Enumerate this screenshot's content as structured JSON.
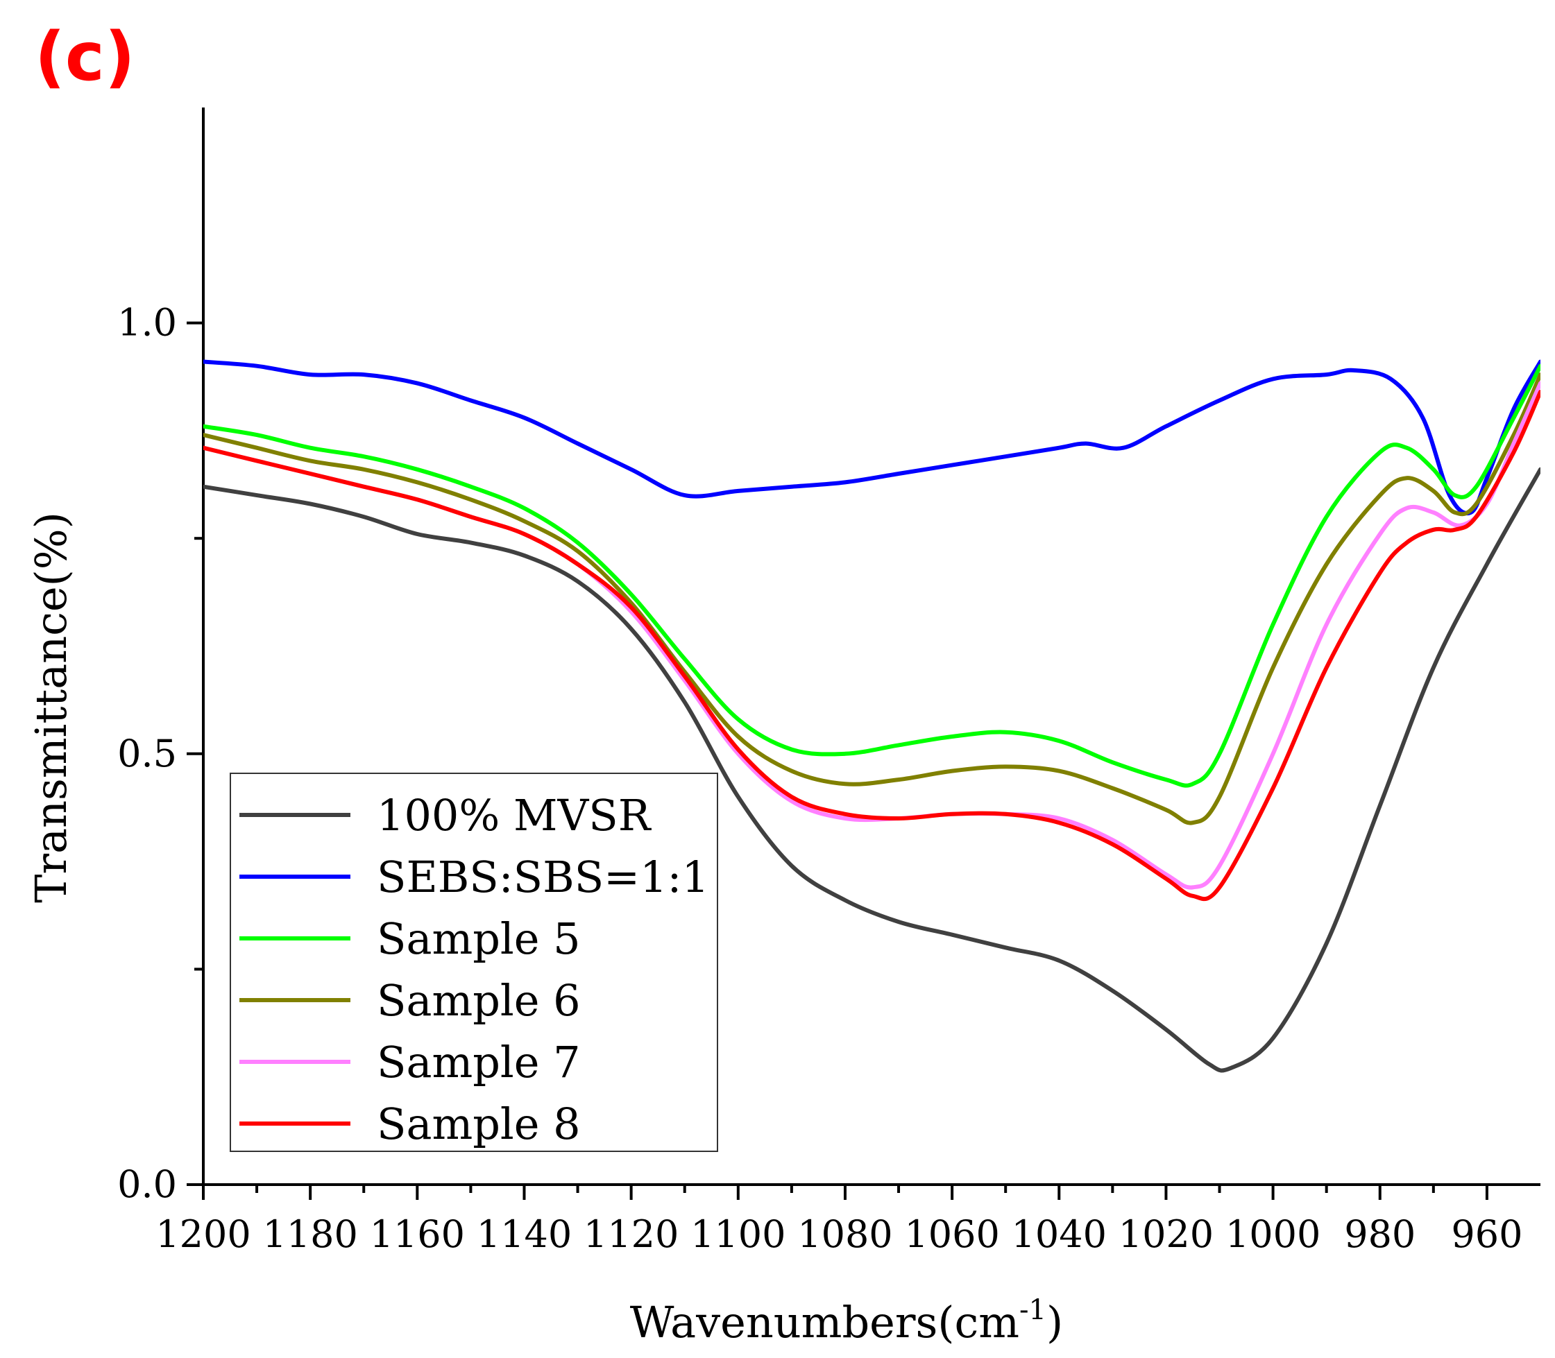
{
  "panel_label": "(c)",
  "chart_data": {
    "type": "line",
    "title": "",
    "xlabel": "Wavenumbers(cm",
    "xlabel_superscript": "-1",
    "xlabel_suffix": ")",
    "ylabel": "Transmittance(%)",
    "xlim": [
      1200,
      950
    ],
    "ylim": [
      0.0,
      1.25
    ],
    "x_major_ticks": [
      1200,
      1180,
      1160,
      1140,
      1120,
      1100,
      1080,
      1060,
      1040,
      1020,
      1000,
      980,
      960
    ],
    "x_tick_labels": [
      "1200",
      "1180",
      "1160",
      "1140",
      "1120",
      "1100",
      "1080",
      "1060",
      "1040",
      "1020",
      "1000",
      "980",
      "960"
    ],
    "y_major_ticks": [
      0.0,
      0.5,
      1.0
    ],
    "y_tick_labels": [
      "0.0",
      "0.5",
      "1.0"
    ],
    "y_minor_ticks": [
      0.25,
      0.75
    ],
    "legend_position": "bottom-left",
    "series": [
      {
        "name": "100% MVSR",
        "color": "#404040",
        "points": [
          [
            1200,
            0.81
          ],
          [
            1190,
            0.8
          ],
          [
            1180,
            0.79
          ],
          [
            1170,
            0.775
          ],
          [
            1160,
            0.755
          ],
          [
            1150,
            0.745
          ],
          [
            1140,
            0.73
          ],
          [
            1130,
            0.7
          ],
          [
            1120,
            0.645
          ],
          [
            1110,
            0.56
          ],
          [
            1100,
            0.45
          ],
          [
            1090,
            0.37
          ],
          [
            1080,
            0.33
          ],
          [
            1070,
            0.305
          ],
          [
            1060,
            0.29
          ],
          [
            1050,
            0.275
          ],
          [
            1040,
            0.26
          ],
          [
            1030,
            0.225
          ],
          [
            1020,
            0.18
          ],
          [
            1012,
            0.14
          ],
          [
            1008,
            0.135
          ],
          [
            1000,
            0.17
          ],
          [
            990,
            0.28
          ],
          [
            980,
            0.44
          ],
          [
            970,
            0.6
          ],
          [
            960,
            0.72
          ],
          [
            950,
            0.83
          ]
        ]
      },
      {
        "name": "SEBS:SBS=1:1",
        "color": "#0000ff",
        "points": [
          [
            1200,
            0.955
          ],
          [
            1190,
            0.95
          ],
          [
            1180,
            0.94
          ],
          [
            1170,
            0.94
          ],
          [
            1160,
            0.93
          ],
          [
            1150,
            0.91
          ],
          [
            1140,
            0.89
          ],
          [
            1130,
            0.86
          ],
          [
            1120,
            0.83
          ],
          [
            1110,
            0.8
          ],
          [
            1100,
            0.805
          ],
          [
            1090,
            0.81
          ],
          [
            1080,
            0.815
          ],
          [
            1070,
            0.825
          ],
          [
            1060,
            0.835
          ],
          [
            1050,
            0.845
          ],
          [
            1040,
            0.855
          ],
          [
            1035,
            0.86
          ],
          [
            1028,
            0.855
          ],
          [
            1020,
            0.88
          ],
          [
            1010,
            0.91
          ],
          [
            1000,
            0.935
          ],
          [
            990,
            0.94
          ],
          [
            985,
            0.945
          ],
          [
            978,
            0.935
          ],
          [
            972,
            0.89
          ],
          [
            967,
            0.8
          ],
          [
            963,
            0.78
          ],
          [
            960,
            0.82
          ],
          [
            955,
            0.9
          ],
          [
            950,
            0.955
          ]
        ]
      },
      {
        "name": "Sample 5",
        "color": "#00ff00",
        "points": [
          [
            1200,
            0.88
          ],
          [
            1190,
            0.87
          ],
          [
            1180,
            0.855
          ],
          [
            1170,
            0.845
          ],
          [
            1160,
            0.83
          ],
          [
            1150,
            0.81
          ],
          [
            1140,
            0.785
          ],
          [
            1130,
            0.745
          ],
          [
            1120,
            0.685
          ],
          [
            1110,
            0.61
          ],
          [
            1100,
            0.54
          ],
          [
            1090,
            0.505
          ],
          [
            1080,
            0.5
          ],
          [
            1070,
            0.51
          ],
          [
            1060,
            0.52
          ],
          [
            1050,
            0.525
          ],
          [
            1040,
            0.515
          ],
          [
            1030,
            0.49
          ],
          [
            1020,
            0.47
          ],
          [
            1015,
            0.465
          ],
          [
            1010,
            0.5
          ],
          [
            1000,
            0.65
          ],
          [
            990,
            0.775
          ],
          [
            980,
            0.85
          ],
          [
            975,
            0.855
          ],
          [
            970,
            0.83
          ],
          [
            966,
            0.8
          ],
          [
            962,
            0.81
          ],
          [
            955,
            0.89
          ],
          [
            950,
            0.95
          ]
        ]
      },
      {
        "name": "Sample 6",
        "color": "#808000",
        "points": [
          [
            1200,
            0.87
          ],
          [
            1190,
            0.855
          ],
          [
            1180,
            0.84
          ],
          [
            1170,
            0.83
          ],
          [
            1160,
            0.815
          ],
          [
            1150,
            0.795
          ],
          [
            1140,
            0.77
          ],
          [
            1130,
            0.735
          ],
          [
            1120,
            0.675
          ],
          [
            1110,
            0.595
          ],
          [
            1100,
            0.52
          ],
          [
            1090,
            0.48
          ],
          [
            1080,
            0.465
          ],
          [
            1070,
            0.47
          ],
          [
            1060,
            0.48
          ],
          [
            1050,
            0.485
          ],
          [
            1040,
            0.48
          ],
          [
            1030,
            0.46
          ],
          [
            1020,
            0.435
          ],
          [
            1015,
            0.42
          ],
          [
            1010,
            0.45
          ],
          [
            1000,
            0.6
          ],
          [
            990,
            0.72
          ],
          [
            980,
            0.8
          ],
          [
            975,
            0.82
          ],
          [
            970,
            0.805
          ],
          [
            966,
            0.78
          ],
          [
            962,
            0.79
          ],
          [
            955,
            0.87
          ],
          [
            950,
            0.94
          ]
        ]
      },
      {
        "name": "Sample 7",
        "color": "#ff80ff",
        "points": [
          [
            1200,
            0.855
          ],
          [
            1190,
            0.84
          ],
          [
            1180,
            0.825
          ],
          [
            1170,
            0.81
          ],
          [
            1160,
            0.795
          ],
          [
            1150,
            0.775
          ],
          [
            1140,
            0.755
          ],
          [
            1130,
            0.72
          ],
          [
            1120,
            0.665
          ],
          [
            1110,
            0.585
          ],
          [
            1100,
            0.5
          ],
          [
            1090,
            0.445
          ],
          [
            1080,
            0.425
          ],
          [
            1070,
            0.425
          ],
          [
            1060,
            0.43
          ],
          [
            1050,
            0.43
          ],
          [
            1040,
            0.425
          ],
          [
            1030,
            0.4
          ],
          [
            1020,
            0.36
          ],
          [
            1015,
            0.345
          ],
          [
            1010,
            0.37
          ],
          [
            1000,
            0.5
          ],
          [
            990,
            0.65
          ],
          [
            980,
            0.755
          ],
          [
            975,
            0.785
          ],
          [
            970,
            0.78
          ],
          [
            965,
            0.765
          ],
          [
            960,
            0.79
          ],
          [
            955,
            0.86
          ],
          [
            950,
            0.93
          ]
        ]
      },
      {
        "name": "Sample 8",
        "color": "#ff0000",
        "points": [
          [
            1200,
            0.855
          ],
          [
            1190,
            0.84
          ],
          [
            1180,
            0.825
          ],
          [
            1170,
            0.81
          ],
          [
            1160,
            0.795
          ],
          [
            1150,
            0.775
          ],
          [
            1140,
            0.755
          ],
          [
            1130,
            0.72
          ],
          [
            1120,
            0.67
          ],
          [
            1110,
            0.59
          ],
          [
            1100,
            0.505
          ],
          [
            1090,
            0.45
          ],
          [
            1080,
            0.43
          ],
          [
            1070,
            0.425
          ],
          [
            1060,
            0.43
          ],
          [
            1050,
            0.43
          ],
          [
            1040,
            0.42
          ],
          [
            1030,
            0.395
          ],
          [
            1020,
            0.355
          ],
          [
            1015,
            0.335
          ],
          [
            1010,
            0.345
          ],
          [
            1000,
            0.46
          ],
          [
            990,
            0.6
          ],
          [
            980,
            0.71
          ],
          [
            975,
            0.745
          ],
          [
            970,
            0.76
          ],
          [
            966,
            0.76
          ],
          [
            962,
            0.775
          ],
          [
            955,
            0.85
          ],
          [
            950,
            0.92
          ]
        ]
      }
    ]
  }
}
